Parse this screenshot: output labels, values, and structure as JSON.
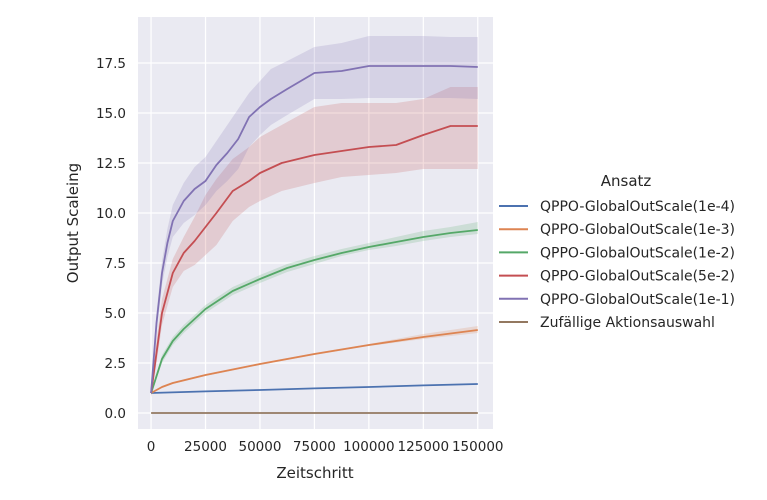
{
  "chart_data": {
    "type": "line",
    "xlabel": "Zeitschritt",
    "ylabel": "Output Scaleing",
    "xlim": [
      -6000,
      157000
    ],
    "ylim": [
      -0.8,
      19.8
    ],
    "xticks": [
      0,
      25000,
      50000,
      75000,
      100000,
      125000,
      150000
    ],
    "xtick_labels": [
      "0",
      "25000",
      "50000",
      "75000",
      "100000",
      "125000",
      "150000"
    ],
    "yticks": [
      0.0,
      2.5,
      5.0,
      7.5,
      10.0,
      12.5,
      15.0,
      17.5
    ],
    "ytick_labels": [
      "0.0",
      "2.5",
      "5.0",
      "7.5",
      "10.0",
      "12.5",
      "15.0",
      "17.5"
    ],
    "grid": true,
    "legend_title": "Ansatz",
    "legend_position": "right, outside",
    "colors": {
      "background": "#eaeaf2",
      "grid": "#ffffff"
    },
    "series": [
      {
        "name": "QPPO-GlobalOutScale(1e-4)",
        "color": "#4c72b0",
        "x": [
          0,
          25000,
          50000,
          75000,
          100000,
          125000,
          150000
        ],
        "y": [
          1.0,
          1.08,
          1.15,
          1.23,
          1.3,
          1.38,
          1.45
        ],
        "band_low": [
          1.0,
          1.06,
          1.13,
          1.21,
          1.28,
          1.35,
          1.42
        ],
        "band_high": [
          1.0,
          1.1,
          1.17,
          1.25,
          1.32,
          1.41,
          1.48
        ]
      },
      {
        "name": "QPPO-GlobalOutScale(1e-3)",
        "color": "#dd8452",
        "x": [
          0,
          5000,
          10000,
          25000,
          50000,
          75000,
          100000,
          125000,
          150000
        ],
        "y": [
          1.0,
          1.3,
          1.5,
          1.9,
          2.45,
          2.95,
          3.4,
          3.8,
          4.15
        ],
        "band_low": [
          1.0,
          1.25,
          1.45,
          1.85,
          2.4,
          2.9,
          3.35,
          3.7,
          4.0
        ],
        "band_high": [
          1.0,
          1.35,
          1.55,
          1.95,
          2.5,
          3.0,
          3.45,
          3.95,
          4.35
        ]
      },
      {
        "name": "QPPO-GlobalOutScale(1e-2)",
        "color": "#55a868",
        "x": [
          0,
          5000,
          10000,
          15000,
          25000,
          37500,
          50000,
          62500,
          75000,
          87500,
          100000,
          112500,
          125000,
          137500,
          150000
        ],
        "y": [
          1.0,
          2.7,
          3.6,
          4.2,
          5.2,
          6.1,
          6.7,
          7.25,
          7.65,
          8.0,
          8.3,
          8.55,
          8.8,
          9.0,
          9.15
        ],
        "band_low": [
          0.9,
          2.5,
          3.4,
          4.0,
          5.0,
          5.9,
          6.5,
          7.05,
          7.45,
          7.85,
          8.15,
          8.35,
          8.6,
          8.8,
          8.95
        ],
        "band_high": [
          1.1,
          2.9,
          3.8,
          4.4,
          5.4,
          6.3,
          6.9,
          7.45,
          7.85,
          8.2,
          8.5,
          8.8,
          9.1,
          9.3,
          9.55
        ]
      },
      {
        "name": "QPPO-GlobalOutScale(5e-2)",
        "color": "#c44e52",
        "x": [
          0,
          2500,
          5000,
          10000,
          15000,
          20000,
          25000,
          30000,
          37500,
          45000,
          50000,
          60000,
          75000,
          87500,
          100000,
          112500,
          125000,
          137500,
          150000
        ],
        "y": [
          1.0,
          3.0,
          5.0,
          7.0,
          8.0,
          8.6,
          9.3,
          10.0,
          11.1,
          11.6,
          12.0,
          12.5,
          12.9,
          13.1,
          13.3,
          13.4,
          13.9,
          14.35,
          14.35
        ],
        "band_low": [
          0.8,
          2.5,
          4.4,
          6.3,
          7.1,
          7.4,
          7.9,
          8.4,
          9.6,
          10.3,
          10.6,
          11.1,
          11.5,
          11.8,
          11.9,
          12.0,
          12.2,
          12.2,
          12.2
        ],
        "band_high": [
          1.2,
          3.6,
          5.7,
          7.7,
          8.8,
          9.8,
          10.9,
          11.7,
          12.7,
          13.3,
          13.8,
          14.4,
          15.3,
          15.5,
          15.5,
          15.5,
          15.7,
          16.3,
          16.3
        ]
      },
      {
        "name": "QPPO-GlobalOutScale(1e-1)",
        "color": "#8172b3",
        "x": [
          0,
          2500,
          5000,
          7500,
          10000,
          15000,
          20000,
          25000,
          30000,
          35000,
          40000,
          45000,
          50000,
          55000,
          62500,
          75000,
          87500,
          100000,
          112500,
          125000,
          137500,
          150000
        ],
        "y": [
          1.0,
          4.5,
          7.0,
          8.5,
          9.6,
          10.6,
          11.2,
          11.6,
          12.4,
          13.0,
          13.7,
          14.8,
          15.3,
          15.7,
          16.2,
          17.0,
          17.1,
          17.35,
          17.35,
          17.35,
          17.35,
          17.3
        ],
        "band_low": [
          0.8,
          4.0,
          6.4,
          7.8,
          8.8,
          9.5,
          9.9,
          10.4,
          11.1,
          11.6,
          12.2,
          13.3,
          13.9,
          14.4,
          14.9,
          15.7,
          15.7,
          15.75,
          15.75,
          15.75,
          15.75,
          15.7
        ],
        "band_high": [
          1.2,
          5.0,
          7.6,
          9.2,
          10.4,
          11.5,
          12.3,
          12.8,
          13.6,
          14.4,
          15.2,
          16.0,
          16.6,
          17.2,
          17.6,
          18.3,
          18.5,
          18.85,
          18.85,
          18.85,
          18.8,
          18.8
        ]
      },
      {
        "name": "Zufällige Aktionsauswahl",
        "color": "#937860",
        "x": [
          0,
          150000
        ],
        "y": [
          0.0,
          0.0
        ]
      }
    ]
  }
}
